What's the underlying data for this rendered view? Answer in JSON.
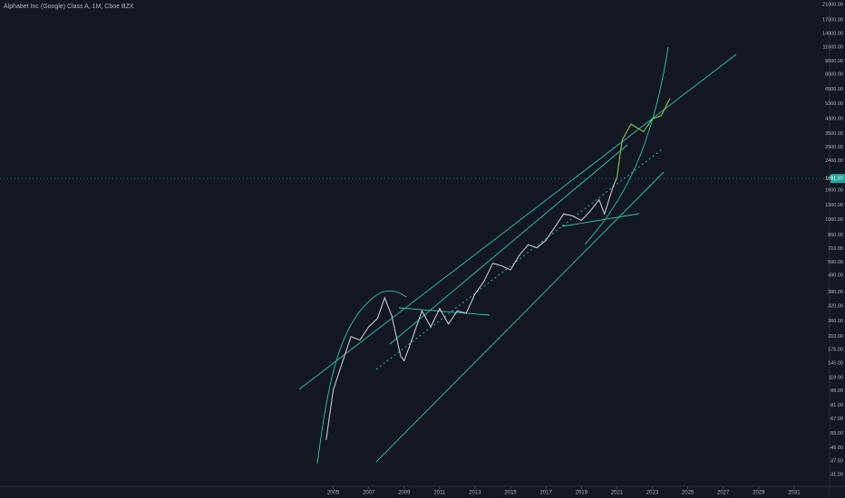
{
  "chart_data": {
    "type": "line",
    "title": "Alphabet Inc (Google) Class A, 1M, Cboe BZX",
    "log_y": true,
    "xlim": [
      1986.2,
      2033.0
    ],
    "xticks": [
      2005,
      2007,
      2009,
      2011,
      2013,
      2015,
      2017,
      2019,
      2021,
      2023,
      2025,
      2027,
      2029,
      2031
    ],
    "ylim": [
      31,
      21000
    ],
    "yticks": [
      {
        "value": 21000,
        "label": "21000.00"
      },
      {
        "value": 17000,
        "label": "17000.00"
      },
      {
        "value": 14000,
        "label": "14000.00"
      },
      {
        "value": 11600,
        "label": "11600.00"
      },
      {
        "value": 9600,
        "label": "9600.00"
      },
      {
        "value": 8000,
        "label": "8000.00"
      },
      {
        "value": 6500,
        "label": "6500.00"
      },
      {
        "value": 5300,
        "label": "5300.00"
      },
      {
        "value": 4300,
        "label": "4300.00"
      },
      {
        "value": 3500,
        "label": "3500.00"
      },
      {
        "value": 2900,
        "label": "2900.00"
      },
      {
        "value": 2400,
        "label": "2400.00"
      },
      {
        "value": 1600,
        "label": "1600.00"
      },
      {
        "value": 1300,
        "label": "1300.00"
      },
      {
        "value": 1060,
        "label": "1060.00"
      },
      {
        "value": 860,
        "label": "860.00"
      },
      {
        "value": 710,
        "label": "710.00"
      },
      {
        "value": 590,
        "label": "590.00"
      },
      {
        "value": 490,
        "label": "490.00"
      },
      {
        "value": 390,
        "label": "390.00"
      },
      {
        "value": 320,
        "label": "320.00"
      },
      {
        "value": 260,
        "label": "260.00"
      },
      {
        "value": 210,
        "label": "210.00"
      },
      {
        "value": 175,
        "label": "175.00"
      },
      {
        "value": 145,
        "label": "145.00"
      },
      {
        "value": 119,
        "label": "119.00"
      },
      {
        "value": 99,
        "label": "99.00"
      },
      {
        "value": 81,
        "label": "81.00"
      },
      {
        "value": 67,
        "label": "67.00"
      },
      {
        "value": 55,
        "label": "55.00"
      },
      {
        "value": 45,
        "label": "45.00"
      },
      {
        "value": 37.5,
        "label": "37.50"
      },
      {
        "value": 31,
        "label": "31.00"
      }
    ],
    "last_price": 1881.07,
    "series": [
      {
        "color": "#c2c8cf",
        "x": [
          2004.6,
          2005,
          2005.5,
          2006,
          2006.5,
          2007,
          2007.5,
          2007.9,
          2008.3,
          2008.8,
          2009,
          2009.5,
          2010,
          2010.5,
          2011,
          2011.5,
          2012,
          2012.5,
          2013,
          2013.5,
          2014,
          2014.5,
          2015,
          2015.5,
          2016,
          2016.5,
          2017,
          2017.5,
          2018,
          2018.5,
          2019,
          2019.5,
          2020,
          2020.3,
          2020.8,
          2021
        ],
        "values": [
          50,
          100,
          145,
          210,
          200,
          240,
          270,
          360,
          280,
          160,
          150,
          210,
          300,
          240,
          310,
          250,
          300,
          290,
          380,
          450,
          580,
          560,
          530,
          650,
          750,
          720,
          800,
          960,
          1150,
          1120,
          1050,
          1200,
          1400,
          1150,
          1700,
          1900
        ]
      },
      {
        "color": "#8bc34a",
        "x": [
          2021,
          2021.3,
          2021.8,
          2022.5,
          2023,
          2023.5,
          2024
        ],
        "values": [
          1900,
          3200,
          4000,
          3600,
          4300,
          4500,
          5700
        ]
      }
    ]
  }
}
